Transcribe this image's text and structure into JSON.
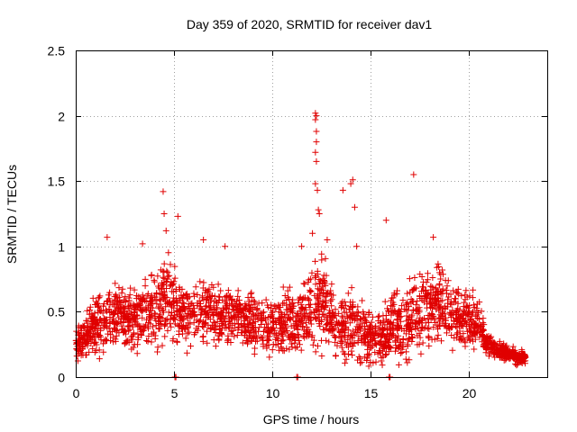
{
  "chart_data": {
    "type": "scatter",
    "title": "Day 359 of 2020, SRMTID for receiver dav1",
    "xlabel": "GPS time / hours",
    "ylabel": "SRMTID / TECUs",
    "xlim": [
      0,
      24
    ],
    "ylim": [
      0,
      2.5
    ],
    "x_ticks": [
      0,
      5,
      10,
      15,
      20
    ],
    "x_tick_labels": [
      "0",
      "5",
      "10",
      "15",
      "20"
    ],
    "y_ticks": [
      0,
      0.5,
      1,
      1.5,
      2,
      2.5
    ],
    "y_tick_labels": [
      "0",
      "0.5",
      "1",
      "1.5",
      "2",
      "2.5"
    ],
    "grid": true,
    "marker": "+",
    "color": "#e00000",
    "series": [
      {
        "name": "dav1",
        "envelope": {
          "x": [
            0.0,
            0.5,
            1.0,
            1.5,
            2.0,
            2.5,
            3.0,
            3.5,
            4.0,
            4.5,
            5.0,
            5.5,
            6.0,
            6.5,
            7.0,
            7.5,
            8.0,
            8.5,
            9.0,
            9.5,
            10.0,
            10.5,
            11.0,
            11.5,
            12.0,
            12.5,
            13.0,
            13.5,
            14.0,
            14.5,
            15.0,
            15.5,
            16.0,
            16.5,
            17.0,
            17.5,
            18.0,
            18.5,
            19.0,
            19.5,
            20.0,
            20.5,
            21.0,
            21.5,
            22.0,
            22.5,
            22.9
          ],
          "mid": [
            0.25,
            0.3,
            0.4,
            0.45,
            0.5,
            0.45,
            0.45,
            0.5,
            0.5,
            0.6,
            0.55,
            0.45,
            0.45,
            0.5,
            0.5,
            0.45,
            0.5,
            0.45,
            0.4,
            0.4,
            0.4,
            0.4,
            0.45,
            0.45,
            0.5,
            0.6,
            0.45,
            0.35,
            0.4,
            0.35,
            0.3,
            0.3,
            0.4,
            0.4,
            0.45,
            0.5,
            0.55,
            0.55,
            0.5,
            0.45,
            0.45,
            0.4,
            0.25,
            0.2,
            0.18,
            0.15,
            0.15
          ],
          "spread": [
            0.15,
            0.25,
            0.3,
            0.35,
            0.35,
            0.35,
            0.35,
            0.35,
            0.4,
            0.45,
            0.4,
            0.35,
            0.35,
            0.35,
            0.35,
            0.3,
            0.3,
            0.3,
            0.3,
            0.3,
            0.3,
            0.3,
            0.35,
            0.4,
            0.45,
            0.45,
            0.4,
            0.35,
            0.4,
            0.35,
            0.3,
            0.3,
            0.35,
            0.35,
            0.4,
            0.4,
            0.4,
            0.4,
            0.35,
            0.3,
            0.3,
            0.25,
            0.1,
            0.08,
            0.08,
            0.08,
            0.06
          ]
        },
        "spikes": [
          {
            "x": 12.2,
            "y": 2.02
          },
          {
            "x": 12.25,
            "y": 2.0
          },
          {
            "x": 12.2,
            "y": 1.97
          },
          {
            "x": 12.25,
            "y": 1.88
          },
          {
            "x": 12.25,
            "y": 1.8
          },
          {
            "x": 12.2,
            "y": 1.72
          },
          {
            "x": 12.25,
            "y": 1.65
          },
          {
            "x": 12.2,
            "y": 1.48
          },
          {
            "x": 12.3,
            "y": 1.43
          },
          {
            "x": 12.35,
            "y": 1.28
          },
          {
            "x": 12.4,
            "y": 1.25
          },
          {
            "x": 17.2,
            "y": 1.55
          },
          {
            "x": 14.1,
            "y": 1.51
          },
          {
            "x": 14.0,
            "y": 1.48
          },
          {
            "x": 13.6,
            "y": 1.43
          },
          {
            "x": 4.45,
            "y": 1.42
          },
          {
            "x": 14.2,
            "y": 1.3
          },
          {
            "x": 4.5,
            "y": 1.25
          },
          {
            "x": 5.2,
            "y": 1.23
          },
          {
            "x": 15.8,
            "y": 1.2
          },
          {
            "x": 4.6,
            "y": 1.12
          },
          {
            "x": 12.05,
            "y": 1.1
          },
          {
            "x": 1.6,
            "y": 1.07
          },
          {
            "x": 18.2,
            "y": 1.07
          },
          {
            "x": 6.5,
            "y": 1.05
          },
          {
            "x": 3.4,
            "y": 1.02
          },
          {
            "x": 7.6,
            "y": 1.0
          },
          {
            "x": 14.3,
            "y": 1.0
          },
          {
            "x": 11.5,
            "y": 1.0
          },
          {
            "x": 12.8,
            "y": 1.05
          }
        ],
        "floor_points": [
          {
            "x": 5.05,
            "y": 0.0
          },
          {
            "x": 5.1,
            "y": 0.0
          },
          {
            "x": 11.25,
            "y": 0.0
          },
          {
            "x": 11.3,
            "y": 0.0
          },
          {
            "x": 15.95,
            "y": 0.0
          },
          {
            "x": 16.0,
            "y": 0.0
          }
        ]
      }
    ]
  }
}
